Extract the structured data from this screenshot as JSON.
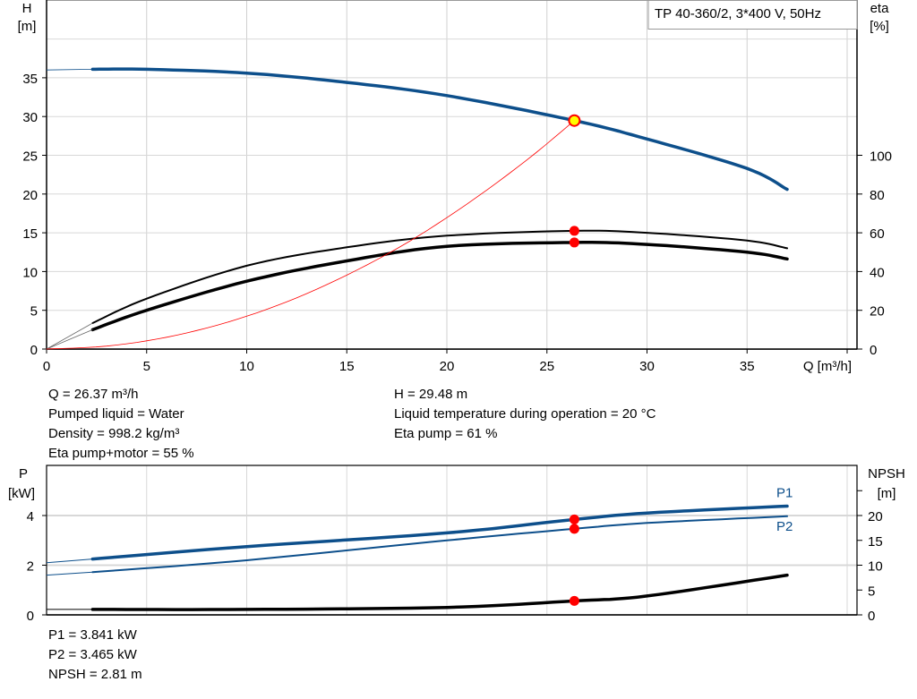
{
  "chart_data": [
    {
      "type": "line",
      "title": "TP 40-360/2, 3*400 V, 50Hz",
      "xlabel": "Q [m³/h]",
      "ylabel_left": [
        "H",
        "[m]"
      ],
      "ylabel_right": [
        "eta",
        "[%]"
      ],
      "xlim": [
        0,
        40
      ],
      "ylim_left": [
        0,
        40
      ],
      "ylim_right": [
        0,
        160
      ],
      "x_ticks": [
        "0",
        "5",
        "10",
        "15",
        "20",
        "25",
        "30",
        "35"
      ],
      "y_ticks_left": [
        "0",
        "5",
        "10",
        "15",
        "20",
        "25",
        "30",
        "35"
      ],
      "y_ticks_right": [
        "0",
        "20",
        "40",
        "60",
        "80",
        "100"
      ],
      "grid": true,
      "series": [
        {
          "axis": "left",
          "color": "#0d4f8b",
          "x": [
            2.3,
            5,
            10,
            15,
            20,
            26.37,
            30,
            35,
            37
          ],
          "y": [
            36.1,
            36.1,
            35.6,
            34.4,
            32.7,
            29.48,
            27.1,
            23.3,
            20.6
          ]
        },
        {
          "axis": "right",
          "color": "#000000",
          "x": [
            2.3,
            5,
            10,
            15,
            20,
            26.37,
            30,
            35,
            37
          ],
          "y": [
            13.4,
            26,
            43,
            52.5,
            58.5,
            61,
            60,
            56,
            52
          ]
        },
        {
          "axis": "right",
          "color": "#000000",
          "x": [
            2.3,
            5,
            10,
            15,
            20,
            26.37,
            30,
            35,
            37
          ],
          "y": [
            10,
            20,
            35,
            45.5,
            53,
            55,
            54,
            50,
            46.5
          ]
        },
        {
          "axis": "left",
          "color": "#ff0000",
          "x": [
            0,
            3,
            6,
            9,
            12,
            15,
            18,
            21,
            24,
            26.37
          ],
          "y": [
            0,
            0.38,
            1.53,
            3.43,
            6.1,
            9.54,
            13.7,
            18.7,
            24.4,
            29.48
          ]
        }
      ],
      "duty_point": {
        "Q": 26.37,
        "H": 29.48,
        "eta_pump": 61,
        "eta_pump_motor": 55
      }
    },
    {
      "type": "line",
      "xlim": [
        0,
        40
      ],
      "ylabel_left": [
        "P",
        "[kW]"
      ],
      "ylabel_right": [
        "NPSH",
        "[m]"
      ],
      "ylim_left": [
        0,
        6
      ],
      "ylim_right": [
        0,
        30
      ],
      "y_ticks_left": [
        "0",
        "2",
        "4"
      ],
      "y_ticks_right": [
        "0",
        "5",
        "10",
        "15",
        "20"
      ],
      "grid": true,
      "series": [
        {
          "name": "P1",
          "axis": "left",
          "color": "#0d4f8b",
          "x": [
            0,
            2.3,
            10,
            20,
            26.37,
            30,
            37
          ],
          "y": [
            2.1,
            2.25,
            2.75,
            3.3,
            3.841,
            4.1,
            4.38
          ]
        },
        {
          "name": "P2",
          "axis": "left",
          "color": "#0d4f8b",
          "x": [
            0,
            2.3,
            10,
            20,
            26.37,
            30,
            37
          ],
          "y": [
            1.6,
            1.72,
            2.2,
            3.0,
            3.465,
            3.7,
            3.97
          ]
        },
        {
          "axis": "right",
          "color": "#000000",
          "x": [
            0,
            2.3,
            10,
            20,
            26.37,
            30,
            37
          ],
          "y": [
            1.1,
            1.1,
            1.1,
            1.5,
            2.81,
            3.8,
            8.0
          ]
        }
      ]
    }
  ],
  "info_top": {
    "left": [
      "Q = 26.37 m³/h",
      "Pumped liquid = Water",
      "Density = 998.2 kg/m³",
      "Eta pump+motor = 55 %"
    ],
    "right": [
      "H = 29.48 m",
      "Liquid temperature during operation = 20 °C",
      "Eta pump = 61 %"
    ]
  },
  "info_bottom": [
    "P1 = 3.841 kW",
    "P2 = 3.465 kW",
    "NPSH = 2.81 m"
  ]
}
